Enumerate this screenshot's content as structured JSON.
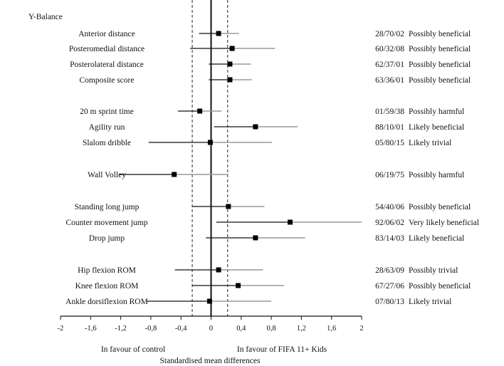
{
  "chart_data": {
    "type": "forest",
    "xlim": [
      -2,
      2
    ],
    "xticks": [
      "-2",
      "-1,6",
      "-1,2",
      "-0,8",
      "-0,4",
      "0",
      "0,4",
      "0,8",
      "1,2",
      "1,6",
      "2"
    ],
    "xlabel": "Standardised mean differences",
    "favour_left": "In favour of control",
    "favour_right": "In favour of FIFA 11+ Kids",
    "reference_lines": [
      -0.25,
      0.22
    ],
    "section_heading": "Y-Balance",
    "rows": [
      {
        "label": "Anterior distance",
        "est": 0.1,
        "lo": -0.16,
        "hi": 0.37,
        "prob": "28/70/02",
        "inference": "Possibly beneficial"
      },
      {
        "label": "Posteromedial distance",
        "est": 0.28,
        "lo": -0.28,
        "hi": 0.85,
        "prob": "60/32/08",
        "inference": "Possibly beneficial"
      },
      {
        "label": "Posterolateral distance",
        "est": 0.25,
        "lo": -0.03,
        "hi": 0.53,
        "prob": "62/37/01",
        "inference": "Possibly beneficial"
      },
      {
        "label": "Composite score",
        "est": 0.25,
        "lo": -0.03,
        "hi": 0.54,
        "prob": "63/36/01",
        "inference": "Possibly beneficial"
      },
      {
        "label": "20 m sprint time",
        "est": -0.15,
        "lo": -0.44,
        "hi": 0.14,
        "prob": "01/59/38",
        "inference": "Possibly harmful"
      },
      {
        "label": "Agility run",
        "est": 0.59,
        "lo": 0.04,
        "hi": 1.15,
        "prob": "88/10/01",
        "inference": "Likely beneficial"
      },
      {
        "label": "Slalom dribble",
        "est": -0.01,
        "lo": -0.83,
        "hi": 0.81,
        "prob": "05/80/15",
        "inference": "Likely trivial"
      },
      {
        "label": "Wall Volley",
        "est": -0.49,
        "lo": -1.22,
        "hi": 0.23,
        "prob": "06/19/75",
        "inference": "Possibly harmful"
      },
      {
        "label": "Standing long jump",
        "est": 0.23,
        "lo": -0.25,
        "hi": 0.71,
        "prob": "54/40/06",
        "inference": "Possibly beneficial"
      },
      {
        "label": "Counter movement jump",
        "est": 1.05,
        "lo": 0.07,
        "hi": 2.0,
        "prob": "92/06/02",
        "inference": "Very likely beneficial"
      },
      {
        "label": "Drop jump",
        "est": 0.59,
        "lo": -0.07,
        "hi": 1.25,
        "prob": "83/14/03",
        "inference": "Likely beneficial"
      },
      {
        "label": "Hip flexion ROM",
        "est": 0.1,
        "lo": -0.48,
        "hi": 0.69,
        "prob": "28/63/09",
        "inference": "Possibly trivial"
      },
      {
        "label": "Knee flexion ROM",
        "est": 0.36,
        "lo": -0.25,
        "hi": 0.97,
        "prob": "67/27/06",
        "inference": "Possibly beneficial"
      },
      {
        "label": "Ankle dorsiflexion ROM",
        "est": -0.02,
        "lo": -0.85,
        "hi": 0.8,
        "prob": "07/80/13",
        "inference": "Likely trivial"
      }
    ]
  }
}
